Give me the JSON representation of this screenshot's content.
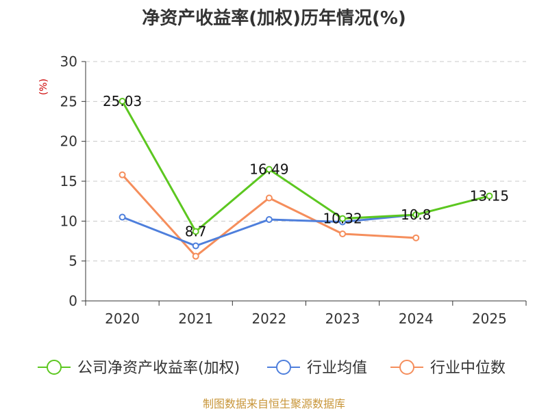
{
  "chart_data": {
    "type": "line",
    "title": "净资产收益率(加权)历年情况(%)",
    "ylabel": "(%)",
    "xlabel": "",
    "ylim": [
      0,
      30
    ],
    "yticks": [
      0,
      5,
      10,
      15,
      20,
      25,
      30
    ],
    "grid": true,
    "categories": [
      "2020",
      "2021",
      "2022",
      "2023",
      "2024",
      "2025"
    ],
    "series": [
      {
        "name": "公司净资产收益率(加权)",
        "color": "#5cc720",
        "values": [
          25.03,
          8.7,
          16.49,
          10.32,
          10.8,
          13.15
        ],
        "labels": [
          "25.03",
          "8.7",
          "16.49",
          "10.32",
          "10.8",
          "13.15"
        ]
      },
      {
        "name": "行业均值",
        "color": "#4e7fdc",
        "values": [
          10.5,
          6.9,
          10.2,
          9.9,
          10.8,
          null
        ]
      },
      {
        "name": "行业中位数",
        "color": "#f58e5c",
        "values": [
          15.8,
          5.6,
          12.9,
          8.4,
          7.9,
          null
        ]
      }
    ],
    "legend_position": "bottom"
  },
  "ylabel_color": "#cc0000",
  "footer": {
    "text": "制图数据来自恒生聚源数据库",
    "color": "#c8963a"
  }
}
